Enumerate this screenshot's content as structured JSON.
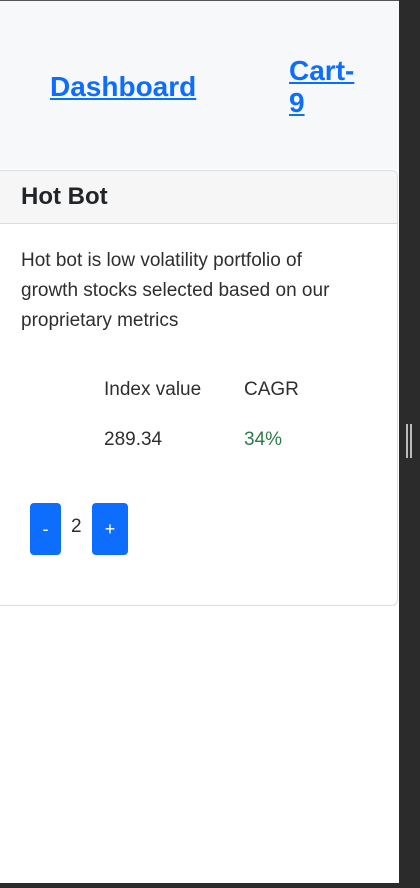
{
  "nav": {
    "dashboard_label": "Dashboard",
    "cart_label": "Cart-9"
  },
  "card": {
    "title": "Hot Bot",
    "description": "Hot bot is low volatility portfolio of growth stocks selected based on our proprietary metrics",
    "stats": {
      "index_label": "Index value",
      "cagr_label": "CAGR",
      "index_value": "289.34",
      "cagr_value": "34%"
    },
    "quantity": {
      "minus_label": "-",
      "value": "2",
      "plus_label": "+"
    }
  },
  "colors": {
    "accent": "#0d6efd",
    "positive": "#2d7a4b"
  }
}
